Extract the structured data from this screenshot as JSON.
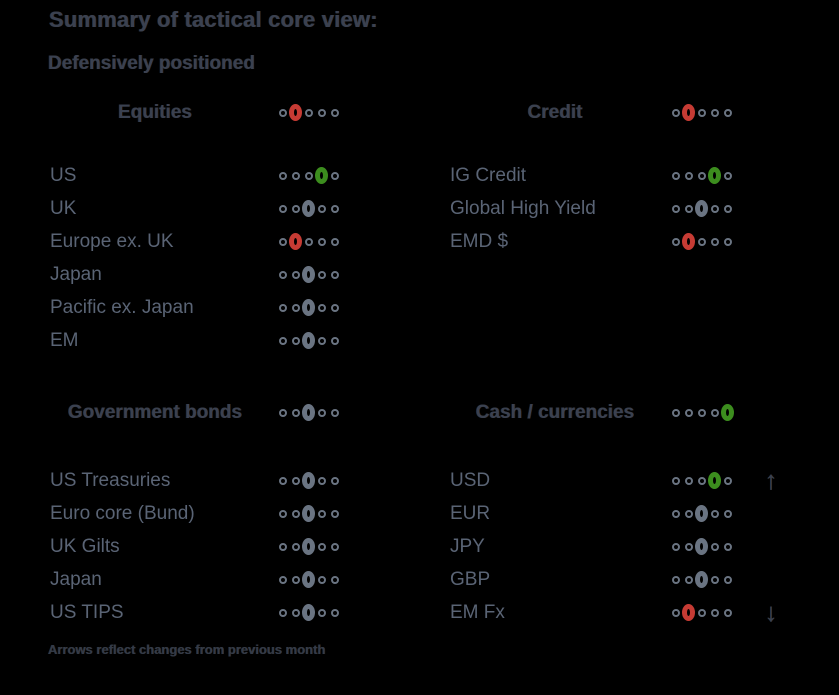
{
  "chart_data": {
    "type": "table",
    "title": "Summary of tactical core view:",
    "subtitle": "Defensively positioned",
    "footnote": "Arrows reflect changes from previous month",
    "scale": {
      "positions": 5
    },
    "sections": [
      {
        "header": {
          "label": "Equities",
          "position": 2,
          "color": "red"
        },
        "rows": [
          {
            "label": "US",
            "position": 4,
            "color": "green"
          },
          {
            "label": "UK",
            "position": 3,
            "color": "grey"
          },
          {
            "label": "Europe ex. UK",
            "position": 2,
            "color": "red"
          },
          {
            "label": "Japan",
            "position": 3,
            "color": "grey"
          },
          {
            "label": "Pacific ex. Japan",
            "position": 3,
            "color": "grey"
          },
          {
            "label": "EM",
            "position": 3,
            "color": "grey"
          }
        ]
      },
      {
        "header": {
          "label": "Credit",
          "position": 2,
          "color": "red"
        },
        "rows": [
          {
            "label": "IG Credit",
            "position": 4,
            "color": "green"
          },
          {
            "label": "Global High Yield",
            "position": 3,
            "color": "grey"
          },
          {
            "label": "EMD $",
            "position": 2,
            "color": "red"
          }
        ]
      },
      {
        "header": {
          "label": "Government bonds",
          "position": 3,
          "color": "grey"
        },
        "rows": [
          {
            "label": "US Treasuries",
            "position": 3,
            "color": "grey"
          },
          {
            "label": "Euro core (Bund)",
            "position": 3,
            "color": "grey"
          },
          {
            "label": "UK Gilts",
            "position": 3,
            "color": "grey"
          },
          {
            "label": "Japan",
            "position": 3,
            "color": "grey"
          },
          {
            "label": "US TIPS",
            "position": 3,
            "color": "grey"
          }
        ]
      },
      {
        "header": {
          "label": "Cash / currencies",
          "position": 5,
          "color": "green"
        },
        "rows": [
          {
            "label": "USD",
            "position": 4,
            "color": "green",
            "arrow": "up"
          },
          {
            "label": "EUR",
            "position": 3,
            "color": "grey"
          },
          {
            "label": "JPY",
            "position": 3,
            "color": "grey"
          },
          {
            "label": "GBP",
            "position": 3,
            "color": "grey"
          },
          {
            "label": "EM Fx",
            "position": 2,
            "color": "red",
            "arrow": "down"
          }
        ]
      }
    ]
  },
  "colors": {
    "dot_red": "#c63b34",
    "dot_green": "#3c8d1e",
    "dot_grey": "#6a7482",
    "background": "#000000"
  },
  "icons": {
    "up_arrow": "↑",
    "down_arrow": "↓"
  }
}
